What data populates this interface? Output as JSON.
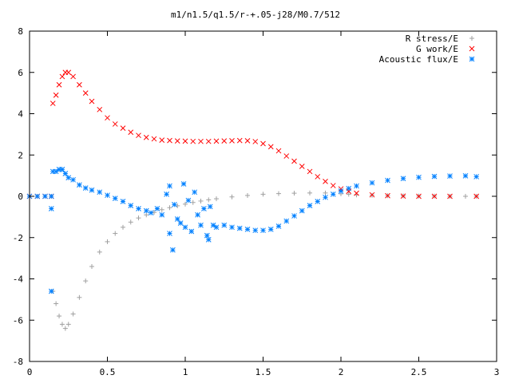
{
  "chart_data": {
    "type": "scatter",
    "title": "m1/n1.5/q1.5/r-+.05-j28/M0.7/512",
    "xlabel": "",
    "ylabel": "",
    "xlim": [
      0,
      3
    ],
    "ylim": [
      -8,
      8
    ],
    "x_ticks": [
      "0",
      "0.5",
      "1",
      "1.5",
      "2",
      "2.5",
      "3"
    ],
    "y_ticks": [
      "8",
      "6",
      "4",
      "2",
      "0",
      "-2",
      "-4",
      "-6",
      "-8"
    ],
    "grid": false,
    "legend_position": "top-right",
    "series": [
      {
        "name": "R stress/E",
        "color": "#a0a0a0",
        "marker": "plus",
        "points": [
          [
            0,
            0
          ],
          [
            0.05,
            0
          ],
          [
            0.1,
            0
          ],
          [
            0.14,
            0
          ],
          [
            0.15,
            -4.6
          ],
          [
            0.17,
            -5.2
          ],
          [
            0.19,
            -5.8
          ],
          [
            0.21,
            -6.2
          ],
          [
            0.23,
            -6.4
          ],
          [
            0.25,
            -6.2
          ],
          [
            0.28,
            -5.7
          ],
          [
            0.32,
            -4.9
          ],
          [
            0.36,
            -4.1
          ],
          [
            0.4,
            -3.4
          ],
          [
            0.45,
            -2.7
          ],
          [
            0.5,
            -2.2
          ],
          [
            0.55,
            -1.8
          ],
          [
            0.6,
            -1.5
          ],
          [
            0.65,
            -1.25
          ],
          [
            0.7,
            -1.05
          ],
          [
            0.75,
            -0.9
          ],
          [
            0.8,
            -0.78
          ],
          [
            0.85,
            -0.65
          ],
          [
            0.9,
            -0.55
          ],
          [
            0.95,
            -0.46
          ],
          [
            1.0,
            -0.38
          ],
          [
            1.05,
            -0.3
          ],
          [
            1.1,
            -0.23
          ],
          [
            1.15,
            -0.17
          ],
          [
            1.2,
            -0.12
          ],
          [
            1.3,
            -0.03
          ],
          [
            1.4,
            0.04
          ],
          [
            1.5,
            0.1
          ],
          [
            1.6,
            0.13
          ],
          [
            1.7,
            0.15
          ],
          [
            1.8,
            0.16
          ],
          [
            1.9,
            0.16
          ],
          [
            2.0,
            0.12
          ],
          [
            2.05,
            0.1
          ],
          [
            2.1,
            0.07
          ],
          [
            2.2,
            0.05
          ],
          [
            2.3,
            0.03
          ],
          [
            2.4,
            0.02
          ],
          [
            2.5,
            0.01
          ],
          [
            2.6,
            0.01
          ],
          [
            2.7,
            0
          ],
          [
            2.8,
            0
          ],
          [
            2.87,
            0
          ]
        ]
      },
      {
        "name": "G work/E",
        "color": "#ff0000",
        "marker": "cross",
        "points": [
          [
            0,
            0
          ],
          [
            0.05,
            0
          ],
          [
            0.1,
            0
          ],
          [
            0.14,
            0
          ],
          [
            0.15,
            4.5
          ],
          [
            0.17,
            4.9
          ],
          [
            0.19,
            5.4
          ],
          [
            0.21,
            5.8
          ],
          [
            0.23,
            6.0
          ],
          [
            0.25,
            6.0
          ],
          [
            0.28,
            5.8
          ],
          [
            0.32,
            5.4
          ],
          [
            0.36,
            5.0
          ],
          [
            0.4,
            4.6
          ],
          [
            0.45,
            4.2
          ],
          [
            0.5,
            3.8
          ],
          [
            0.55,
            3.5
          ],
          [
            0.6,
            3.3
          ],
          [
            0.65,
            3.1
          ],
          [
            0.7,
            2.95
          ],
          [
            0.75,
            2.85
          ],
          [
            0.8,
            2.78
          ],
          [
            0.85,
            2.72
          ],
          [
            0.9,
            2.7
          ],
          [
            0.95,
            2.68
          ],
          [
            1.0,
            2.67
          ],
          [
            1.05,
            2.66
          ],
          [
            1.1,
            2.66
          ],
          [
            1.15,
            2.66
          ],
          [
            1.2,
            2.67
          ],
          [
            1.25,
            2.68
          ],
          [
            1.3,
            2.69
          ],
          [
            1.35,
            2.7
          ],
          [
            1.4,
            2.69
          ],
          [
            1.45,
            2.65
          ],
          [
            1.5,
            2.55
          ],
          [
            1.55,
            2.4
          ],
          [
            1.6,
            2.2
          ],
          [
            1.65,
            1.95
          ],
          [
            1.7,
            1.7
          ],
          [
            1.75,
            1.45
          ],
          [
            1.8,
            1.2
          ],
          [
            1.85,
            0.95
          ],
          [
            1.9,
            0.72
          ],
          [
            1.95,
            0.52
          ],
          [
            2.0,
            0.36
          ],
          [
            2.05,
            0.24
          ],
          [
            2.1,
            0.15
          ],
          [
            2.2,
            0.07
          ],
          [
            2.3,
            0.03
          ],
          [
            2.4,
            0.01
          ],
          [
            2.5,
            0
          ],
          [
            2.6,
            0
          ],
          [
            2.7,
            0
          ],
          [
            2.87,
            0
          ]
        ]
      },
      {
        "name": "Acoustic flux/E",
        "color": "#0080ff",
        "marker": "star",
        "points": [
          [
            0,
            0
          ],
          [
            0.05,
            0
          ],
          [
            0.1,
            0
          ],
          [
            0.14,
            0
          ],
          [
            0.14,
            -0.6
          ],
          [
            0.14,
            -4.6
          ],
          [
            0.15,
            1.2
          ],
          [
            0.17,
            1.2
          ],
          [
            0.19,
            1.3
          ],
          [
            0.21,
            1.3
          ],
          [
            0.23,
            1.1
          ],
          [
            0.25,
            0.9
          ],
          [
            0.28,
            0.8
          ],
          [
            0.32,
            0.55
          ],
          [
            0.36,
            0.4
          ],
          [
            0.4,
            0.3
          ],
          [
            0.45,
            0.2
          ],
          [
            0.5,
            0.05
          ],
          [
            0.55,
            -0.1
          ],
          [
            0.6,
            -0.25
          ],
          [
            0.65,
            -0.45
          ],
          [
            0.7,
            -0.6
          ],
          [
            0.75,
            -0.7
          ],
          [
            0.78,
            -0.8
          ],
          [
            0.82,
            -0.6
          ],
          [
            0.85,
            -0.9
          ],
          [
            0.88,
            0.1
          ],
          [
            0.9,
            -1.8
          ],
          [
            0.9,
            0.5
          ],
          [
            0.92,
            -2.6
          ],
          [
            0.93,
            -0.4
          ],
          [
            0.95,
            -1.1
          ],
          [
            0.97,
            -1.3
          ],
          [
            0.99,
            0.6
          ],
          [
            1.0,
            -1.5
          ],
          [
            1.02,
            -0.2
          ],
          [
            1.04,
            -1.7
          ],
          [
            1.06,
            0.2
          ],
          [
            1.08,
            -0.9
          ],
          [
            1.1,
            -1.4
          ],
          [
            1.12,
            -0.6
          ],
          [
            1.14,
            -1.9
          ],
          [
            1.15,
            -2.1
          ],
          [
            1.16,
            -0.5
          ],
          [
            1.18,
            -1.4
          ],
          [
            1.2,
            -1.5
          ],
          [
            1.25,
            -1.4
          ],
          [
            1.3,
            -1.5
          ],
          [
            1.35,
            -1.55
          ],
          [
            1.4,
            -1.6
          ],
          [
            1.45,
            -1.65
          ],
          [
            1.5,
            -1.65
          ],
          [
            1.55,
            -1.6
          ],
          [
            1.6,
            -1.45
          ],
          [
            1.65,
            -1.2
          ],
          [
            1.7,
            -0.95
          ],
          [
            1.75,
            -0.7
          ],
          [
            1.8,
            -0.45
          ],
          [
            1.85,
            -0.25
          ],
          [
            1.9,
            -0.05
          ],
          [
            1.95,
            0.1
          ],
          [
            2.0,
            0.25
          ],
          [
            2.05,
            0.38
          ],
          [
            2.1,
            0.5
          ],
          [
            2.2,
            0.65
          ],
          [
            2.3,
            0.77
          ],
          [
            2.4,
            0.86
          ],
          [
            2.5,
            0.92
          ],
          [
            2.6,
            0.96
          ],
          [
            2.7,
            0.98
          ],
          [
            2.8,
            0.99
          ],
          [
            2.87,
            0.95
          ]
        ]
      }
    ]
  }
}
